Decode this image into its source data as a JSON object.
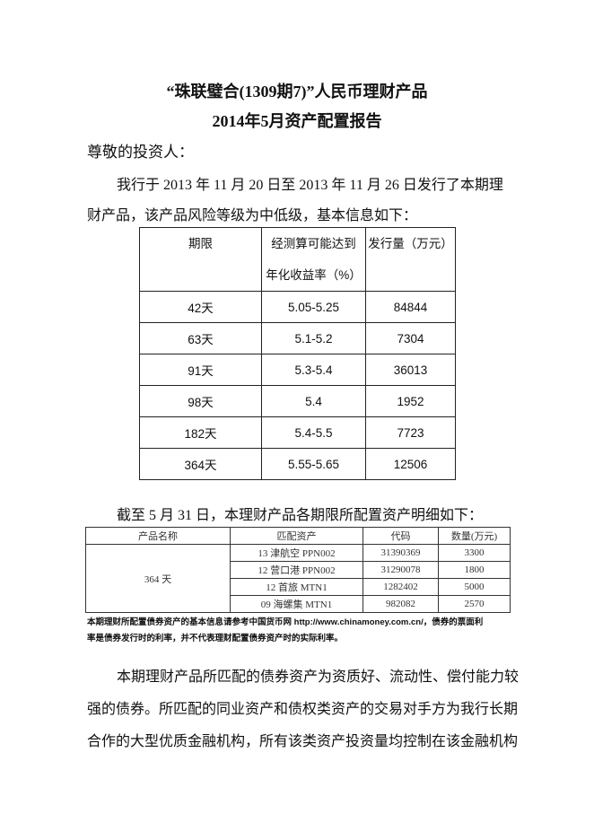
{
  "title": {
    "line1": "“珠联璧合(1309期7)”人民币理财产品",
    "line2": "2014年5月资产配置报告"
  },
  "greeting": "尊敬的投资人：",
  "intro": {
    "line1": "我行于 2013 年 11 月 20 日至 2013 年 11 月 26 日发行了本期理",
    "line2": "财产品，该产品风险等级为中低级，基本信息如下："
  },
  "table1": {
    "headers": [
      "期限",
      "经测算可能达到",
      "年化收益率（%）",
      "发行量（万元）"
    ],
    "rows": [
      [
        "42天",
        "5.05-5.25",
        "84844"
      ],
      [
        "63天",
        "5.1-5.2",
        "7304"
      ],
      [
        "91天",
        "5.3-5.4",
        "36013"
      ],
      [
        "98天",
        "5.4",
        "1952"
      ],
      [
        "182天",
        "5.4-5.5",
        "7723"
      ],
      [
        "364天",
        "5.55-5.65",
        "12506"
      ]
    ]
  },
  "asof": "截至 5 月 31 日，本理财产品各期限所配置资产明细如下：",
  "table2": {
    "headers": [
      "产品名称",
      "匹配资产",
      "代码",
      "数量(万元)"
    ],
    "product": "364 天",
    "rows": [
      [
        "13 津航空 PPN002",
        "31390369",
        "3300"
      ],
      [
        "12 营口港 PPN002",
        "31290078",
        "1800"
      ],
      [
        "12 首旅 MTN1",
        "1282402",
        "5000"
      ],
      [
        "09 海螺集 MTN1",
        "982082",
        "2570"
      ]
    ]
  },
  "note": {
    "line1": "本期理财所配置债券资产的基本信息请参考中国货币网 http://www.chinamoney.com.cn/，债券的票面利",
    "line2": "率是债券发行时的利率，并不代表理财配置债券资产时的实际利率。"
  },
  "closing": {
    "line1": "本期理财产品所匹配的债券资产为资质好、流动性、偿付能力较",
    "line2": "强的债券。所匹配的同业资产和债权类资产的交易对手方为我行长期",
    "line3": "合作的大型优质金融机构，所有该类资产投资量均控制在该金融机构"
  }
}
